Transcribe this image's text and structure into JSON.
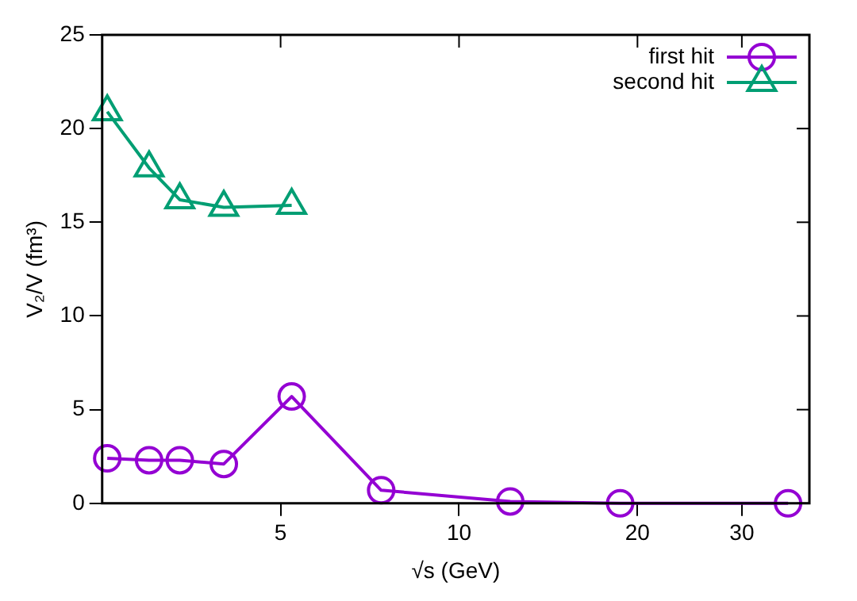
{
  "chart_data": {
    "type": "line",
    "xlabel": "√s (GeV)",
    "ylabel": "V₂/V (fm³)",
    "x": [
      2.55,
      3.0,
      3.38,
      4.01,
      5.22,
      7.39,
      12.2,
      18.7,
      35.9
    ],
    "series": [
      {
        "name": "first hit",
        "color": "#9400d3",
        "marker": "circle",
        "values": [
          2.4,
          2.3,
          2.3,
          2.1,
          5.7,
          0.7,
          0.1,
          0.0,
          0.0
        ]
      },
      {
        "name": "second hit",
        "color": "#009e73",
        "marker": "triangle",
        "values": [
          20.9,
          17.9,
          16.2,
          15.8,
          15.9,
          null,
          null,
          null,
          null
        ]
      }
    ],
    "log": "x",
    "xlim": [
      2.5,
      39
    ],
    "xticks": [
      5,
      10,
      20,
      30
    ],
    "ylim": [
      0,
      25
    ],
    "yticks": [
      0,
      5,
      10,
      15,
      20,
      25
    ],
    "grid": false,
    "legend": "top right",
    "line_style": "solid"
  }
}
